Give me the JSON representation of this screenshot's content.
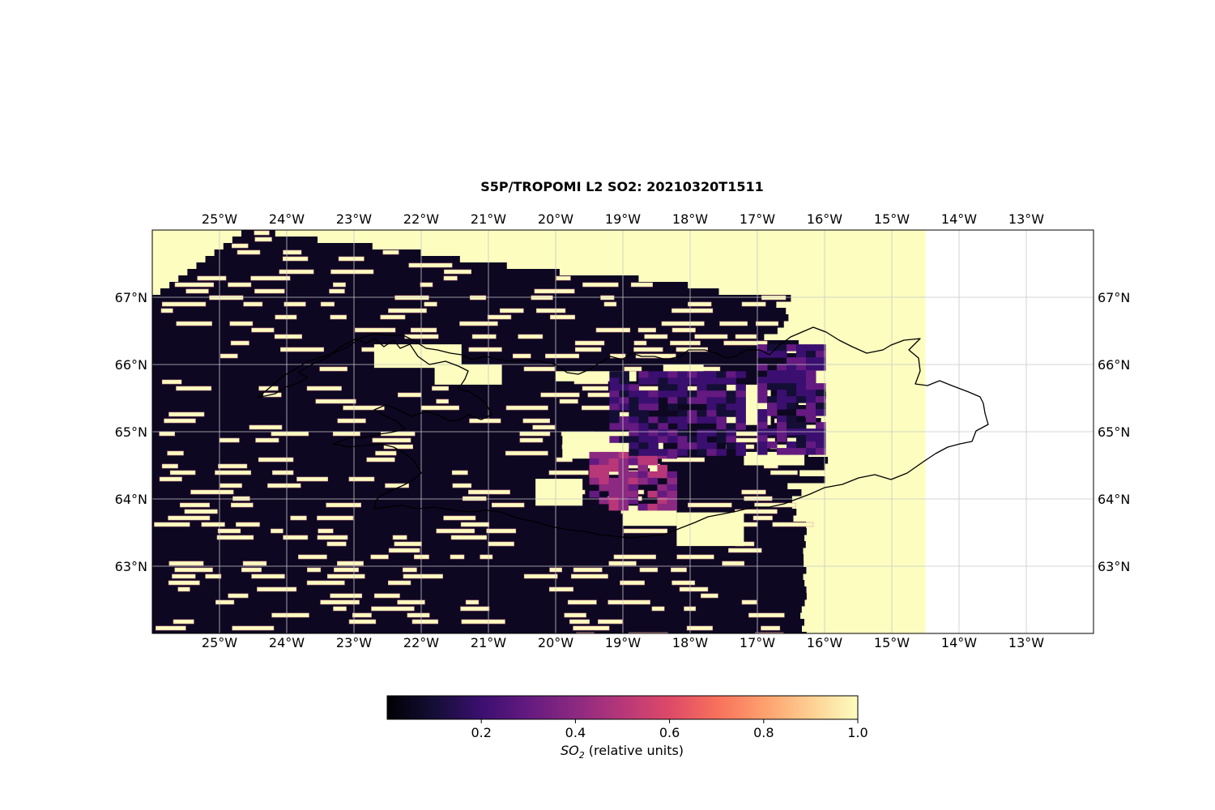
{
  "title": "S5P/TROPOMI L2 SO2: 20210320T1511",
  "map": {
    "lon_range": [
      -26,
      -12
    ],
    "lat_range": [
      62,
      68
    ],
    "lon_ticks": [
      -25,
      -24,
      -23,
      -22,
      -21,
      -20,
      -19,
      -18,
      -17,
      -16,
      -15,
      -14,
      -13
    ],
    "lon_tick_labels": [
      "25°W",
      "24°W",
      "23°W",
      "22°W",
      "21°W",
      "20°W",
      "19°W",
      "18°W",
      "17°W",
      "16°W",
      "15°W",
      "14°W",
      "13°W"
    ],
    "lat_ticks": [
      63,
      64,
      65,
      66,
      67
    ],
    "lat_tick_labels": [
      "63°N",
      "64°N",
      "65°N",
      "66°N",
      "67°N"
    ],
    "grid": true,
    "swath_east_edge_lon": -14.5,
    "fill_value_color": "#fcfdbf",
    "coastline_color": "#000000",
    "gridline_color": "#c8c8c8"
  },
  "colorbar": {
    "colormap": "magma",
    "range": [
      0,
      1
    ],
    "ticks": [
      0.2,
      0.4,
      0.6,
      0.8,
      1.0
    ],
    "tick_labels": [
      "0.2",
      "0.4",
      "0.6",
      "0.8",
      "1.0"
    ],
    "label_symbol": "SO",
    "label_subscript": "2",
    "label_suffix": " (relative units)"
  },
  "chart_data": {
    "type": "heatmap",
    "title": "S5P/TROPOMI L2 SO2: 20210320T1511",
    "xlabel": "",
    "ylabel": "",
    "xlim": [
      -26,
      -12
    ],
    "ylim": [
      62,
      68
    ],
    "value_range": [
      0,
      1
    ],
    "colorbar_label": "SO2 (relative units)",
    "plume_regions": [
      {
        "name": "",
        "lon": [
          -19.5,
          -18.3
        ],
        "lat": [
          63.9,
          64.7
        ],
        "value": 0.38
      },
      {
        "name": "",
        "lon": [
          -19.2,
          -17.3
        ],
        "lat": [
          64.7,
          65.9
        ],
        "value": 0.2
      },
      {
        "name": "",
        "lon": [
          -17.0,
          -16.0
        ],
        "lat": [
          64.7,
          66.3
        ],
        "value": 0.2
      }
    ]
  }
}
